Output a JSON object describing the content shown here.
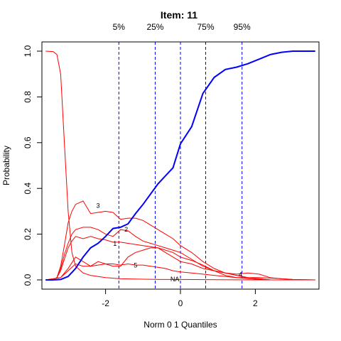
{
  "chart_data": {
    "type": "line",
    "title": "Item:  11",
    "xlabel": "Norm 0 1 Quantiles",
    "ylabel": "Probability",
    "xlim": [
      -3.7,
      3.7
    ],
    "ylim": [
      0,
      1
    ],
    "x_ticks": [
      -2,
      0,
      2
    ],
    "y_ticks": [
      0.0,
      0.2,
      0.4,
      0.6,
      0.8,
      1.0
    ],
    "y_tick_labels": [
      "0.0",
      "0.2",
      "0.4",
      "0.6",
      "0.8",
      "1.0"
    ],
    "x_tick_labels": [
      "-2",
      "0",
      "2"
    ],
    "quantile_lines": [
      {
        "label": "5%",
        "x": -1.645
      },
      {
        "label": "25%",
        "x": -0.674
      },
      {
        "label": "75%",
        "x": 0.674
      },
      {
        "label": "95%",
        "x": 1.645
      }
    ],
    "extra_vline_x": 0,
    "colors": {
      "expected": "#0000ff",
      "options": "#ff0000",
      "quantile": "#0000ff"
    },
    "expected_curve": {
      "x": [
        -3.6,
        -3.4,
        -3.2,
        -3.0,
        -2.8,
        -2.6,
        -2.4,
        -2.2,
        -2.0,
        -1.8,
        -1.6,
        -1.4,
        -1.2,
        -1.0,
        -0.8,
        -0.6,
        -0.4,
        -0.2,
        0.0,
        0.3,
        0.6,
        0.9,
        1.2,
        1.5,
        1.8,
        2.1,
        2.4,
        2.7,
        3.0,
        3.3,
        3.6
      ],
      "y": [
        0.0,
        0.0,
        0.002,
        0.015,
        0.05,
        0.1,
        0.14,
        0.16,
        0.19,
        0.225,
        0.23,
        0.245,
        0.29,
        0.33,
        0.375,
        0.42,
        0.455,
        0.49,
        0.595,
        0.67,
        0.815,
        0.885,
        0.92,
        0.93,
        0.945,
        0.965,
        0.985,
        0.995,
        1.0,
        1.0,
        1.0
      ]
    },
    "series": [
      {
        "name": "",
        "label": "NA",
        "x": [
          -3.6,
          -3.4,
          -3.3,
          -3.2,
          -3.1,
          -3.0,
          -2.9,
          -2.8,
          -2.6,
          -2.4,
          -2.2,
          -2.0,
          -1.6,
          -1.0,
          -0.5,
          0.0,
          1.0,
          2.0,
          3.6
        ],
        "y": [
          1.0,
          0.998,
          0.985,
          0.9,
          0.6,
          0.3,
          0.12,
          0.06,
          0.03,
          0.02,
          0.015,
          0.01,
          0.005,
          0.003,
          0.002,
          0.002,
          0.001,
          0.0,
          0.0
        ]
      },
      {
        "name": "",
        "label": "1",
        "x": [
          -3.6,
          -3.4,
          -3.3,
          -3.2,
          -3.1,
          -3.0,
          -2.9,
          -2.8,
          -2.6,
          -2.4,
          -2.2,
          -2.0,
          -1.8,
          -1.6,
          -1.4,
          -1.2,
          -1.0,
          -0.8,
          -0.6,
          -0.4,
          -0.2,
          0.0,
          0.3,
          0.6,
          0.9,
          1.2,
          1.5,
          1.8,
          2.1,
          2.4,
          3.6
        ],
        "y": [
          0.0,
          0.0,
          0.01,
          0.04,
          0.09,
          0.14,
          0.17,
          0.19,
          0.18,
          0.19,
          0.18,
          0.175,
          0.165,
          0.165,
          0.16,
          0.155,
          0.15,
          0.145,
          0.14,
          0.13,
          0.12,
          0.1,
          0.085,
          0.065,
          0.04,
          0.02,
          0.01,
          0.005,
          0.002,
          0.0,
          0.0
        ]
      },
      {
        "name": "",
        "label": "2",
        "x": [
          -3.6,
          -3.4,
          -3.3,
          -3.2,
          -3.1,
          -3.0,
          -2.9,
          -2.8,
          -2.6,
          -2.4,
          -2.2,
          -2.0,
          -1.8,
          -1.6,
          -1.4,
          -1.2,
          -1.0,
          -0.8,
          -0.6,
          -0.4,
          -0.2,
          0.0,
          0.3,
          0.6,
          0.9,
          1.2,
          1.5,
          1.8,
          2.1,
          2.4,
          3.6
        ],
        "y": [
          0.0,
          0.0,
          0.01,
          0.05,
          0.11,
          0.16,
          0.2,
          0.22,
          0.23,
          0.23,
          0.22,
          0.2,
          0.19,
          0.22,
          0.215,
          0.19,
          0.17,
          0.16,
          0.15,
          0.14,
          0.13,
          0.12,
          0.09,
          0.06,
          0.04,
          0.03,
          0.02,
          0.01,
          0.005,
          0.0,
          0.0
        ]
      },
      {
        "name": "",
        "label": "3",
        "x": [
          -3.6,
          -3.4,
          -3.3,
          -3.2,
          -3.1,
          -3.0,
          -2.9,
          -2.8,
          -2.6,
          -2.4,
          -2.2,
          -2.0,
          -1.8,
          -1.6,
          -1.4,
          -1.2,
          -1.0,
          -0.8,
          -0.6,
          -0.4,
          -0.2,
          0.0,
          0.3,
          0.6,
          0.9,
          1.2,
          1.5,
          1.8,
          2.1,
          2.4,
          3.6
        ],
        "y": [
          0.0,
          0.0,
          0.01,
          0.06,
          0.15,
          0.25,
          0.3,
          0.33,
          0.345,
          0.29,
          0.295,
          0.3,
          0.295,
          0.265,
          0.27,
          0.27,
          0.26,
          0.24,
          0.22,
          0.2,
          0.18,
          0.15,
          0.12,
          0.08,
          0.05,
          0.03,
          0.02,
          0.01,
          0.005,
          0.0,
          0.0
        ]
      },
      {
        "name": "",
        "label": "4",
        "x": [
          -3.6,
          -3.2,
          -3.0,
          -2.8,
          -2.6,
          -2.4,
          -2.2,
          -2.0,
          -1.8,
          -1.6,
          -1.4,
          -1.2,
          -1.0,
          -0.8,
          -0.6,
          -0.4,
          -0.2,
          0.0,
          0.3,
          0.6,
          0.9,
          1.2,
          1.5,
          1.8,
          2.1,
          2.4,
          2.7,
          3.0,
          3.6
        ],
        "y": [
          0.0,
          0.01,
          0.05,
          0.1,
          0.08,
          0.06,
          0.065,
          0.07,
          0.06,
          0.06,
          0.1,
          0.12,
          0.13,
          0.14,
          0.14,
          0.12,
          0.1,
          0.08,
          0.07,
          0.05,
          0.04,
          0.03,
          0.025,
          0.03,
          0.025,
          0.01,
          0.005,
          0.002,
          0.0
        ]
      },
      {
        "name": "",
        "label": "5",
        "x": [
          -3.6,
          -3.2,
          -3.0,
          -2.8,
          -2.6,
          -2.4,
          -2.2,
          -2.0,
          -1.8,
          -1.6,
          -1.4,
          -1.2,
          -1.0,
          -0.8,
          -0.6,
          -0.4,
          -0.2,
          0.0,
          0.3,
          0.6,
          0.9,
          1.2,
          1.5,
          1.8,
          2.1,
          2.4,
          2.7,
          3.0,
          3.6
        ],
        "y": [
          0.0,
          0.01,
          0.04,
          0.07,
          0.06,
          0.06,
          0.08,
          0.07,
          0.07,
          0.065,
          0.07,
          0.065,
          0.065,
          0.06,
          0.055,
          0.05,
          0.04,
          0.035,
          0.03,
          0.025,
          0.02,
          0.015,
          0.01,
          0.01,
          0.01,
          0.008,
          0.005,
          0.002,
          0.0
        ]
      }
    ],
    "curve_labels": [
      {
        "text": "3",
        "x": -2.2,
        "y": 0.325
      },
      {
        "text": "2",
        "x": -1.45,
        "y": 0.22
      },
      {
        "text": "1",
        "x": -1.75,
        "y": 0.158
      },
      {
        "text": "5",
        "x": -1.2,
        "y": 0.064
      },
      {
        "text": "NA",
        "x": -0.15,
        "y": 0.003
      },
      {
        "text": "4",
        "x": 1.6,
        "y": 0.023
      }
    ]
  }
}
